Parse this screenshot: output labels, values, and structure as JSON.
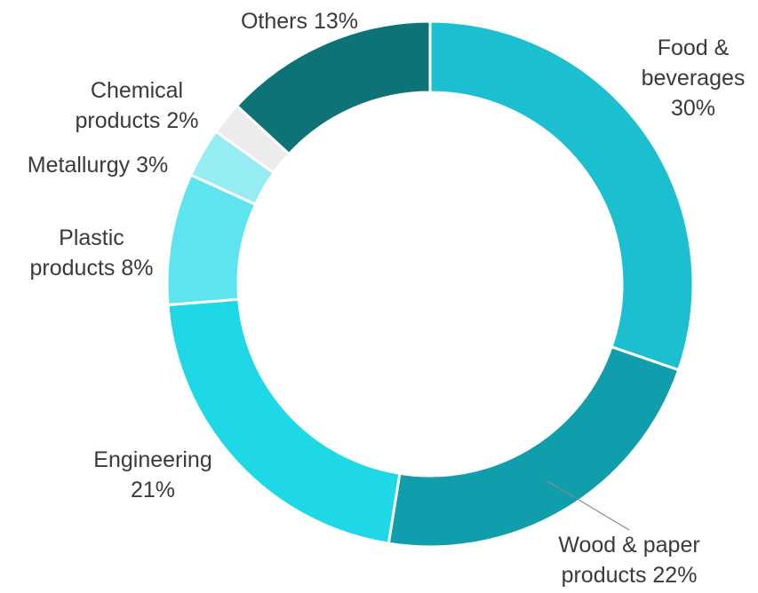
{
  "chart_data": {
    "type": "pie",
    "donut": true,
    "legend": "none",
    "slices": [
      {
        "label_lines": [
          "Food &",
          "beverages",
          "30%"
        ],
        "category": "Food & beverages",
        "value": 30,
        "color": "#1bbfd0"
      },
      {
        "label_lines": [
          "Wood & paper",
          "products  22%"
        ],
        "category": "Wood & paper products",
        "value": 22,
        "color": "#119eac"
      },
      {
        "label_lines": [
          "Engineering",
          "21%"
        ],
        "category": "Engineering",
        "value": 21,
        "color": "#1fd8e6"
      },
      {
        "label_lines": [
          "Plastic",
          "products 8%"
        ],
        "category": "Plastic products",
        "value": 8,
        "color": "#5ee4ee"
      },
      {
        "label_lines": [
          "Metallurgy 3%"
        ],
        "category": "Metallurgy",
        "value": 3,
        "color": "#96ecf3"
      },
      {
        "label_lines": [
          "Chemical",
          "products 2%"
        ],
        "category": "Chemical products",
        "value": 2,
        "color": "#ececec"
      },
      {
        "label_lines": [
          "Others 13%"
        ],
        "category": "Others",
        "value": 13,
        "color": "#0d7377"
      }
    ]
  }
}
